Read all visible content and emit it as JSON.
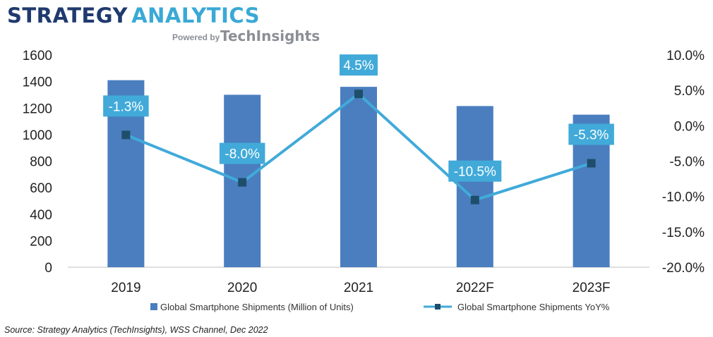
{
  "logo": {
    "line1_part1": "STRATEGY",
    "line1_part2": "ANALYTICS",
    "powered_by": "Powered by",
    "brand": "TechInsights",
    "color_dark": "#1f3a6e",
    "color_light": "#3aa9d6",
    "color_gray": "#8a8f96"
  },
  "chart_data": {
    "type": "bar+line",
    "categories": [
      "2019",
      "2020",
      "2021",
      "2022F",
      "2023F"
    ],
    "series": [
      {
        "name": "Global Smartphone Shipments (Million of Units)",
        "type": "bar",
        "axis": "left",
        "color": "#4a7ebf",
        "values": [
          1410,
          1300,
          1360,
          1215,
          1150
        ]
      },
      {
        "name": "Global Smartphone Shipments YoY%",
        "type": "line",
        "axis": "right",
        "color": "#41aad9",
        "marker_color": "#1f4e6b",
        "values": [
          -1.3,
          -8.0,
          4.5,
          -10.5,
          -5.3
        ],
        "labels": [
          "-1.3%",
          "-8.0%",
          "4.5%",
          "-10.5%",
          "-5.3%"
        ]
      }
    ],
    "y_left": {
      "min": 0,
      "max": 1600,
      "step": 200,
      "ticks": [
        "0",
        "200",
        "400",
        "600",
        "800",
        "1000",
        "1200",
        "1400",
        "1600"
      ]
    },
    "y_right": {
      "min": -20,
      "max": 10,
      "step": 5,
      "ticks": [
        "-20.0%",
        "-15.0%",
        "-10.0%",
        "-5.0%",
        "0.0%",
        "5.0%",
        "10.0%"
      ]
    },
    "grid": false,
    "legend_position": "bottom",
    "source": "Source: Strategy Analytics (TechInsights), WSS Channel, Dec 2022"
  }
}
